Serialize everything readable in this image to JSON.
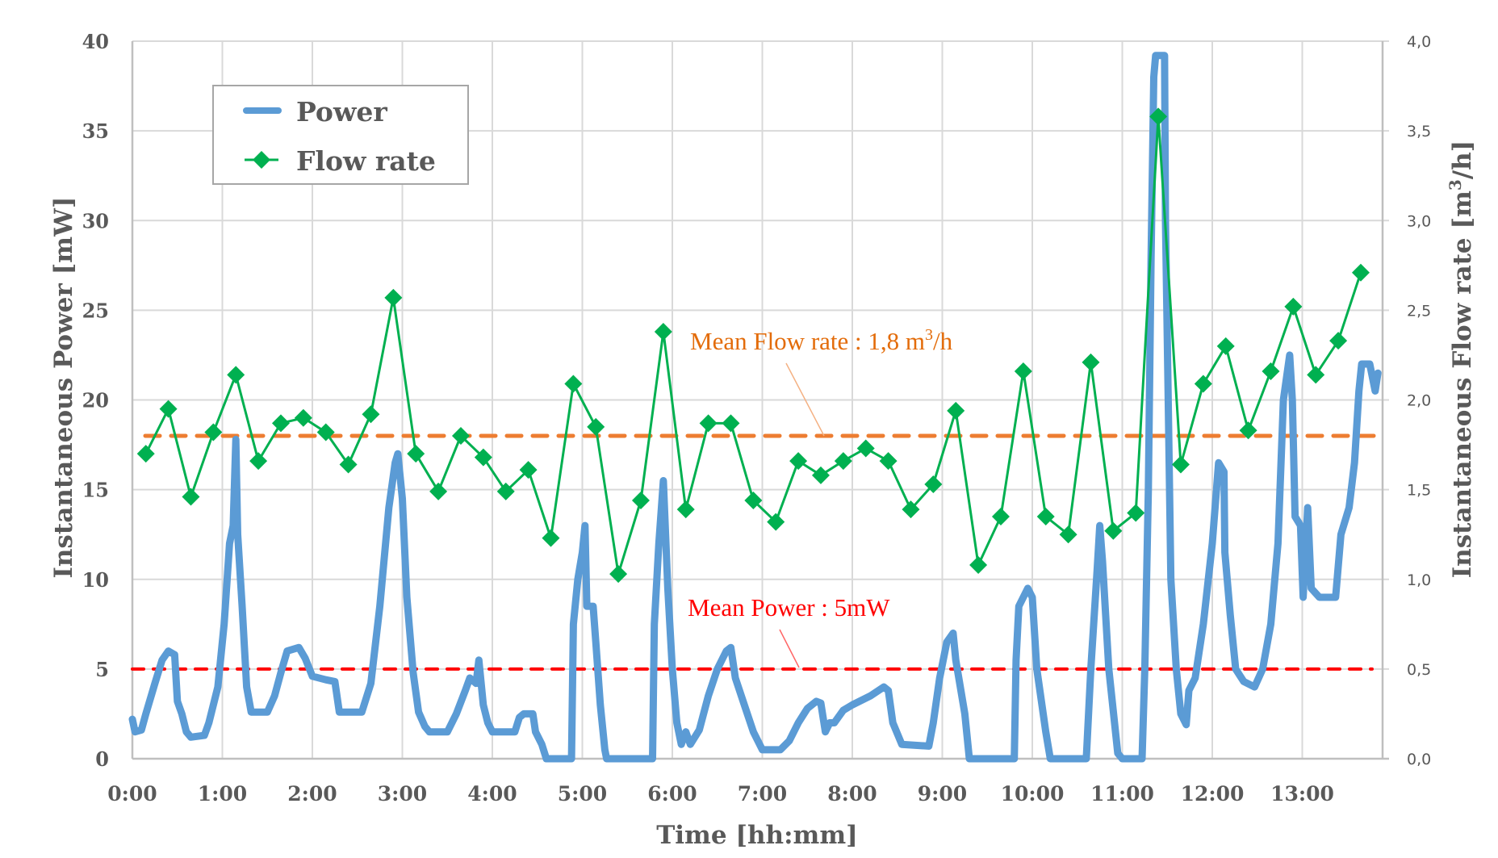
{
  "chart_data": {
    "type": "line",
    "title": "",
    "xlabel": "Time [hh:mm]",
    "ylabel": "Instantaneous Power [mW]",
    "y2label_prefix": "Instantaneous Flow rate [m",
    "y2label_sup": "3",
    "y2label_suffix": "/h]",
    "x_unit": "hours",
    "xlim": [
      0,
      13.95
    ],
    "ylim": [
      0,
      40
    ],
    "y2lim": [
      0,
      4.0
    ],
    "grid": true,
    "legend_position": "top-left",
    "x_ticks": [
      "0:00",
      "1:00",
      "2:00",
      "3:00",
      "4:00",
      "5:00",
      "6:00",
      "7:00",
      "8:00",
      "9:00",
      "10:00",
      "11:00",
      "12:00",
      "13:00"
    ],
    "y_ticks": [
      "0",
      "5",
      "10",
      "15",
      "20",
      "25",
      "30",
      "35",
      "40"
    ],
    "y2_ticks": [
      "0,0",
      "0,5",
      "1,0",
      "1,5",
      "2,0",
      "2,5",
      "3,0",
      "3,5",
      "4,0"
    ],
    "legend": [
      {
        "name": "Power",
        "color": "#5b9bd5",
        "marker": "line"
      },
      {
        "name": "Flow rate",
        "color": "#00b050",
        "marker": "diamond"
      }
    ],
    "series": [
      {
        "name": "Power",
        "axis": "left",
        "color": "#5b9bd5",
        "x": [
          0.0,
          0.03,
          0.1,
          0.15,
          0.25,
          0.33,
          0.4,
          0.47,
          0.5,
          0.55,
          0.6,
          0.65,
          0.8,
          0.85,
          0.95,
          1.02,
          1.08,
          1.12,
          1.15,
          1.17,
          1.22,
          1.27,
          1.32,
          1.5,
          1.58,
          1.65,
          1.72,
          1.85,
          1.92,
          2.0,
          2.15,
          2.25,
          2.3,
          2.55,
          2.65,
          2.75,
          2.85,
          2.92,
          2.95,
          3.0,
          3.05,
          3.12,
          3.18,
          3.25,
          3.3,
          3.5,
          3.6,
          3.7,
          3.75,
          3.82,
          3.85,
          3.9,
          3.95,
          4.0,
          4.25,
          4.3,
          4.35,
          4.45,
          4.48,
          4.55,
          4.6,
          4.88,
          4.9,
          4.95,
          5.0,
          5.03,
          5.05,
          5.12,
          5.15,
          5.2,
          5.25,
          5.27,
          5.78,
          5.8,
          5.85,
          5.9,
          5.95,
          6.0,
          6.05,
          6.1,
          6.15,
          6.2,
          6.3,
          6.4,
          6.5,
          6.6,
          6.65,
          6.7,
          6.8,
          6.9,
          7.0,
          7.2,
          7.3,
          7.4,
          7.5,
          7.6,
          7.65,
          7.7,
          7.75,
          7.8,
          7.9,
          8.0,
          8.2,
          8.35,
          8.4,
          8.45,
          8.55,
          8.85,
          8.9,
          8.97,
          9.05,
          9.12,
          9.15,
          9.25,
          9.3,
          9.8,
          9.82,
          9.85,
          9.95,
          10.0,
          10.05,
          10.15,
          10.2,
          10.6,
          10.65,
          10.72,
          10.75,
          10.78,
          10.85,
          10.95,
          11.0,
          11.22,
          11.25,
          11.29,
          11.32,
          11.35,
          11.37,
          11.47,
          11.48,
          11.51,
          11.54,
          11.6,
          11.65,
          11.71,
          11.74,
          11.81,
          11.9,
          12.0,
          12.07,
          12.13,
          12.14,
          12.2,
          12.26,
          12.35,
          12.47,
          12.56,
          12.65,
          12.73,
          12.79,
          12.86,
          12.89,
          12.92,
          12.98,
          13.01,
          13.06,
          13.1,
          13.19,
          13.37,
          13.43,
          13.52,
          13.58,
          13.63,
          13.66,
          13.75,
          13.81,
          13.84
        ],
        "values": [
          2.2,
          1.5,
          1.6,
          2.5,
          4.2,
          5.5,
          6.0,
          5.8,
          3.2,
          2.5,
          1.5,
          1.2,
          1.3,
          2.0,
          4.0,
          7.5,
          12.0,
          13.0,
          17.8,
          12.5,
          8.5,
          4.0,
          2.6,
          2.6,
          3.5,
          4.8,
          6.0,
          6.2,
          5.6,
          4.6,
          4.4,
          4.3,
          2.6,
          2.6,
          4.2,
          8.5,
          14.0,
          16.5,
          17.0,
          14.5,
          9.0,
          4.8,
          2.6,
          1.8,
          1.5,
          1.5,
          2.5,
          3.8,
          4.5,
          4.2,
          5.5,
          3.0,
          2.0,
          1.5,
          1.5,
          2.3,
          2.5,
          2.5,
          1.5,
          0.8,
          0.0,
          0.0,
          7.5,
          10.0,
          11.5,
          13.0,
          8.5,
          8.5,
          6.5,
          3.0,
          0.5,
          0.0,
          0.0,
          7.5,
          12.0,
          15.5,
          9.5,
          5.0,
          2.0,
          0.8,
          1.5,
          0.8,
          1.6,
          3.5,
          5.0,
          6.0,
          6.2,
          4.5,
          3.0,
          1.5,
          0.5,
          0.5,
          1.0,
          2.0,
          2.8,
          3.2,
          3.1,
          1.5,
          2.0,
          2.0,
          2.7,
          3.0,
          3.5,
          4.0,
          3.8,
          2.0,
          0.8,
          0.7,
          2.0,
          4.5,
          6.5,
          7.0,
          5.5,
          2.5,
          0.0,
          0.0,
          5.5,
          8.5,
          9.5,
          9.0,
          5.0,
          1.5,
          0.0,
          0.0,
          5.0,
          10.5,
          13.0,
          11.0,
          5.0,
          0.3,
          0.0,
          0.0,
          5.0,
          15.0,
          28.0,
          38.0,
          39.2,
          39.2,
          30.0,
          20.0,
          10.0,
          5.0,
          2.5,
          1.9,
          3.8,
          4.5,
          7.5,
          12.0,
          16.5,
          16.0,
          11.5,
          8.0,
          5.0,
          4.3,
          4.0,
          5.0,
          7.5,
          12.0,
          20.0,
          22.5,
          20.0,
          13.5,
          13.0,
          9.0,
          14.0,
          9.5,
          9.0,
          9.0,
          12.5,
          14.0,
          16.5,
          20.5,
          22.0,
          22.0,
          20.5,
          21.5
        ]
      },
      {
        "name": "Flow rate",
        "axis": "right",
        "color": "#00b050",
        "x": [
          0.15,
          0.4,
          0.65,
          0.9,
          1.15,
          1.4,
          1.65,
          1.9,
          2.15,
          2.4,
          2.65,
          2.9,
          3.15,
          3.4,
          3.65,
          3.9,
          4.15,
          4.4,
          4.65,
          4.9,
          5.15,
          5.4,
          5.65,
          5.9,
          6.15,
          6.4,
          6.65,
          6.9,
          7.15,
          7.4,
          7.65,
          7.9,
          8.15,
          8.4,
          8.65,
          8.9,
          9.15,
          9.4,
          9.65,
          9.9,
          10.15,
          10.4,
          10.65,
          10.9,
          11.15,
          11.4,
          11.65,
          11.9,
          12.15,
          12.4,
          12.65,
          12.9,
          13.15,
          13.4,
          13.65
        ],
        "values": [
          1.7,
          1.95,
          1.46,
          1.82,
          2.14,
          1.66,
          1.87,
          1.9,
          1.82,
          1.64,
          1.92,
          2.57,
          1.7,
          1.49,
          1.8,
          1.68,
          1.49,
          1.61,
          1.23,
          2.09,
          1.85,
          1.03,
          1.44,
          2.38,
          1.39,
          1.87,
          1.87,
          1.44,
          1.32,
          1.66,
          1.58,
          1.66,
          1.73,
          1.66,
          1.39,
          1.53,
          1.94,
          1.08,
          1.35,
          2.16,
          1.35,
          1.25,
          2.21,
          1.27,
          1.37,
          3.58,
          1.64,
          2.09,
          2.3,
          1.83,
          2.16,
          2.52,
          2.14,
          2.33,
          2.71
        ]
      }
    ],
    "reference_lines": [
      {
        "name": "Mean Flow rate",
        "axis": "right",
        "value": 1.8,
        "color": "#ed7d31",
        "label_prefix": "Mean Flow rate : 1,8 m",
        "label_sup": "3",
        "label_suffix": "/h",
        "label_color": "#e36c0a"
      },
      {
        "name": "Mean Power",
        "axis": "left",
        "value": 5,
        "color": "#ff0000",
        "label": "Mean Power : 5mW",
        "label_color": "#ff0000"
      }
    ]
  }
}
